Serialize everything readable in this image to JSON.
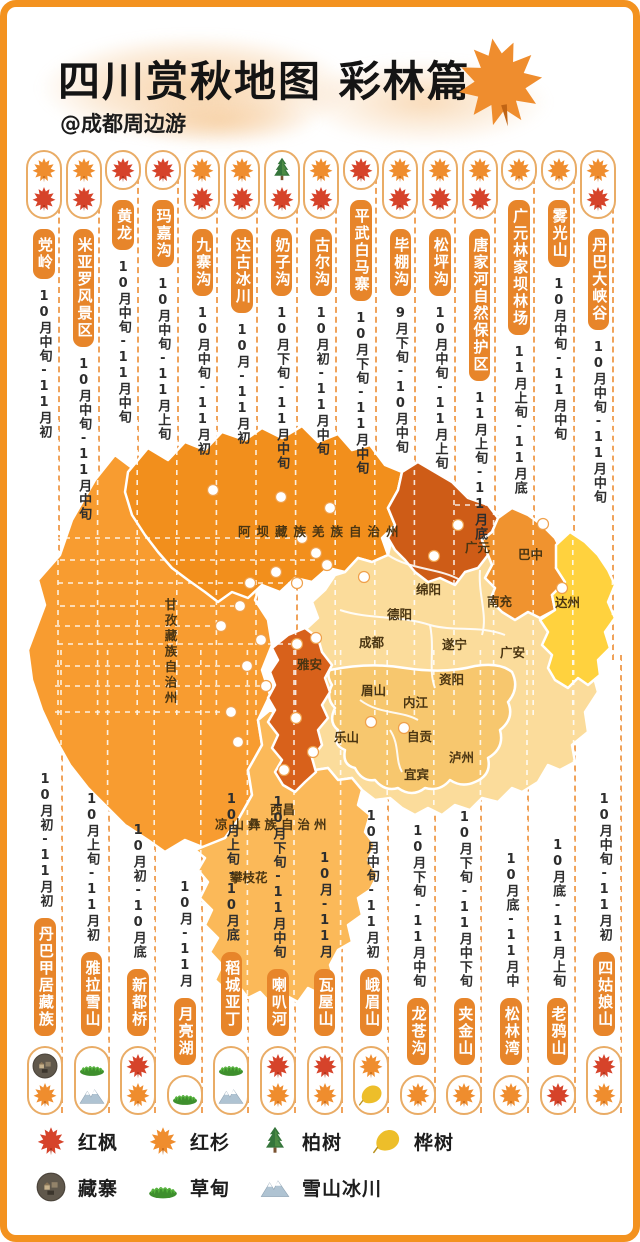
{
  "header": {
    "title": "四川赏秋地图 彩林篇",
    "handle": "@成都周边游",
    "decor_icon": "maple-orange"
  },
  "top_columns": [
    {
      "name": "党岭",
      "dates": "10月中旬-11月初",
      "icons": [
        "maple-orange",
        "maple-red"
      ]
    },
    {
      "name": "米亚罗风景区",
      "dates": "10月中旬-11月中旬",
      "icons": [
        "maple-orange",
        "maple-red"
      ]
    },
    {
      "name": "黄龙",
      "dates": "10月中旬-11月中旬",
      "icons": [
        "maple-red"
      ]
    },
    {
      "name": "玛嘉沟",
      "dates": "10月中旬-11月上旬",
      "icons": [
        "maple-red"
      ]
    },
    {
      "name": "九寨沟",
      "dates": "10月中旬-11月初",
      "icons": [
        "maple-orange",
        "maple-red"
      ]
    },
    {
      "name": "达古冰川",
      "dates": "10月-11月初",
      "icons": [
        "maple-orange",
        "maple-red"
      ]
    },
    {
      "name": "奶子沟",
      "dates": "10月下旬-11月中旬",
      "icons": [
        "cypress",
        "maple-red"
      ]
    },
    {
      "name": "古尔沟",
      "dates": "10月初-11月中旬",
      "icons": [
        "maple-orange",
        "maple-red"
      ]
    },
    {
      "name": "平武白马寨",
      "dates": "10月下旬-11月中旬",
      "icons": [
        "maple-red"
      ]
    },
    {
      "name": "毕棚沟",
      "dates": "9月下旬-10月中旬",
      "icons": [
        "maple-orange",
        "maple-red"
      ]
    },
    {
      "name": "松坪沟",
      "dates": "10月中旬-11月上旬",
      "icons": [
        "maple-orange",
        "maple-red"
      ]
    },
    {
      "name": "唐家河自然保护区",
      "dates": "11月上旬-11月底",
      "icons": [
        "maple-orange",
        "maple-red"
      ]
    },
    {
      "name": "广元林家坝林场",
      "dates": "11月上旬-11月底",
      "icons": [
        "maple-orange"
      ]
    },
    {
      "name": "雾光山",
      "dates": "10月中旬-11月中旬",
      "icons": [
        "maple-orange"
      ]
    },
    {
      "name": "丹巴大峡谷",
      "dates": "10月中旬-11月中旬",
      "icons": [
        "maple-orange",
        "maple-red"
      ]
    }
  ],
  "bottom_columns": [
    {
      "name": "丹巴甲居藏族",
      "dates": "10月初-11月初",
      "icons": [
        "village",
        "maple-orange"
      ]
    },
    {
      "name": "雅拉雪山",
      "dates": "10月上旬-11月初",
      "icons": [
        "meadow",
        "snow"
      ]
    },
    {
      "name": "新都桥",
      "dates": "10月初-10月底",
      "icons": [
        "maple-red",
        "maple-orange"
      ]
    },
    {
      "name": "月亮湖",
      "dates": "10月-11月",
      "icons": [
        "meadow"
      ]
    },
    {
      "name": "稻城亚丁",
      "dates": "10月上旬-10月底",
      "icons": [
        "meadow",
        "snow"
      ]
    },
    {
      "name": "喇叭河",
      "dates": "10月下旬-11月中旬",
      "icons": [
        "maple-red",
        "maple-orange"
      ]
    },
    {
      "name": "瓦屋山",
      "dates": "10月-11月",
      "icons": [
        "maple-red",
        "maple-orange"
      ]
    },
    {
      "name": "峨眉山",
      "dates": "10月中旬-11月初",
      "icons": [
        "maple-orange",
        "birch"
      ]
    },
    {
      "name": "龙苍沟",
      "dates": "10月下旬-11月中旬",
      "icons": [
        "maple-orange"
      ]
    },
    {
      "name": "夹金山",
      "dates": "10月下旬-11月中下旬",
      "icons": [
        "maple-orange"
      ]
    },
    {
      "name": "松林湾",
      "dates": "10月底-11月中",
      "icons": [
        "maple-orange"
      ]
    },
    {
      "name": "老鸦山",
      "dates": "10月底-11月上旬",
      "icons": [
        "maple-red"
      ]
    },
    {
      "name": "四姑娘山",
      "dates": "10月中旬-11月初",
      "icons": [
        "maple-red",
        "maple-orange"
      ]
    }
  ],
  "map": {
    "colors": {
      "aba": "#F28F1C",
      "ganzi": "#F89C30",
      "liangshan": "#FBB959",
      "yaan": "#D8611B",
      "guangyuan": "#CE5C17",
      "bazhong": "#F0932F",
      "dazhou": "#FFD23E",
      "basin": "#FBDC9B",
      "basin_south": "#F7C76E"
    },
    "labels": {
      "aba": "阿坝藏族羌族自治州",
      "ganzi": "甘孜藏族自治州",
      "liangshan": "凉山彝族自治州",
      "guangyuan": "广元",
      "bazhong": "巴中",
      "dazhou": "达州",
      "mianyang": "绵阳",
      "nanchong": "南充",
      "deyang": "德阳",
      "chengdu": "成都",
      "suining": "遂宁",
      "guangan": "广安",
      "ziyang": "资阳",
      "meishan": "眉山",
      "neijiang": "内江",
      "leshan": "乐山",
      "zigong": "自贡",
      "luzhou": "泸州",
      "yibin": "宜宾",
      "yaan": "雅安",
      "xichang": "西昌",
      "panzhihua": "攀枝花"
    }
  },
  "legend": {
    "rows": [
      [
        {
          "icon": "maple-red",
          "label": "红枫"
        },
        {
          "icon": "maple-orange",
          "label": "红杉"
        },
        {
          "icon": "cypress",
          "label": "柏树"
        },
        {
          "icon": "birch",
          "label": "桦树"
        }
      ],
      [
        {
          "icon": "village",
          "label": "藏寨"
        },
        {
          "icon": "meadow",
          "label": "草甸"
        },
        {
          "icon": "snow",
          "label": "雪山冰川"
        }
      ]
    ]
  }
}
